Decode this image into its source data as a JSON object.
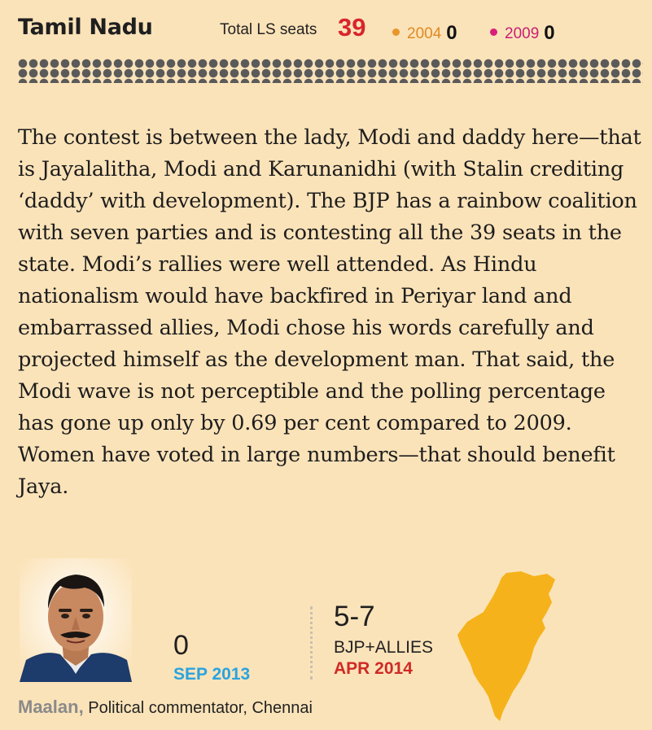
{
  "header": {
    "state_name": "Tamil Nadu",
    "seats_label": "Total LS seats",
    "seats_value": "39",
    "legend": [
      {
        "year": "2004",
        "value": "0",
        "color": "#e8952a"
      },
      {
        "year": "2009",
        "value": "0",
        "color": "#d9207a"
      }
    ]
  },
  "article": {
    "text": "The contest is between the lady, Modi and daddy here—that is Jayalalitha, Modi and Karunanidhi (with Stalin crediting ‘daddy’ with development). The BJP has a rainbow coalition with seven parties and is contesting all the 39 seats in the state. Modi’s rallies were well attended. As Hindu nationalism would have backfired in Periyar land and embarrassed allies, Modi chose his words carefully and projected himself as the development man. That said, the Modi wave is not perceptible and the polling percentage has gone up only by 0.69 per cent compared to 2009.  Women have voted in large numbers—that should benefit Jaya."
  },
  "forecast": {
    "sep_value": "0",
    "sep_date": "SEP 2013",
    "apr_value": "5-7",
    "apr_label": "BJP+ALLIES",
    "apr_date": "APR 2014"
  },
  "commentator": {
    "name": "Maalan,",
    "role": " Political commentator, Chennai"
  },
  "colors": {
    "background": "#fbe3b9",
    "seats_accent": "#d8252b",
    "sep_date": "#2aa3e0",
    "apr_date": "#cf2a26",
    "map_fill": "#f6b21a"
  },
  "icons": {
    "photo": "commentator-photo",
    "map": "tamil-nadu-map"
  }
}
